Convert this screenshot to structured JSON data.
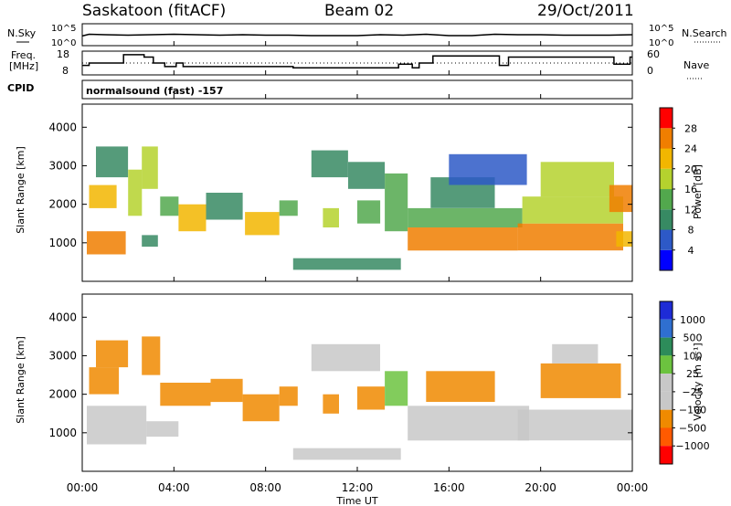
{
  "header": {
    "station": "Saskatoon (fitACF)",
    "beam": "Beam 02",
    "date": "29/Oct/2011"
  },
  "labels": {
    "nsky": "N.Sky",
    "nsearch": "N.Search",
    "freq_line1": "Freq.",
    "freq_line2": "[MHz]",
    "nave": "Nave",
    "cpid": "CPID",
    "cpid_value": "normalsound (fast) -157"
  },
  "colors": {
    "power_scale": [
      "#0000ff",
      "#2d59c7",
      "#378a63",
      "#52a84d",
      "#b5d22e",
      "#f2b600",
      "#f07e00",
      "#ff0000"
    ],
    "velocity_scale": [
      "#1e2bd6",
      "#2f6fd0",
      "#2d8c5a",
      "#6cc33f",
      "#c8c8c8",
      "#c8c8c8",
      "#f08a00",
      "#ff5a00",
      "#ff0000"
    ]
  },
  "chart_data": [
    {
      "type": "line",
      "name": "noise-panel",
      "x_unit": "hours UT",
      "xlim": [
        0,
        24
      ],
      "left_axis": {
        "ticks": [
          "10^5",
          "10^0"
        ]
      },
      "right_axis": {
        "ticks": [
          "10^5",
          "10^0"
        ]
      },
      "series": [
        {
          "name": "N.Sky",
          "x": [
            0,
            0.3,
            1,
            2,
            3,
            4,
            5,
            6,
            7,
            8,
            9,
            10,
            11,
            12,
            13,
            14,
            15,
            16,
            17,
            18,
            19,
            20,
            21,
            22,
            23,
            24
          ],
          "y": [
            2.2,
            2.6,
            2.5,
            2.4,
            2.5,
            2.6,
            2.5,
            2.4,
            2.5,
            2.4,
            2.4,
            2.3,
            2.3,
            2.3,
            2.5,
            2.4,
            2.6,
            2.3,
            2.3,
            2.6,
            2.5,
            2.5,
            2.4,
            2.4,
            2.4,
            2.5
          ]
        },
        {
          "name": "N.Search",
          "x": [
            0,
            24
          ],
          "y": [
            0,
            0
          ]
        }
      ]
    },
    {
      "type": "line",
      "name": "frequency-panel",
      "x_unit": "hours UT",
      "xlim": [
        0,
        24
      ],
      "left_axis": {
        "ticks": [
          "18",
          "8"
        ],
        "ylim": [
          8,
          18
        ]
      },
      "right_axis": {
        "ticks": [
          "60",
          "0"
        ],
        "ylim": [
          0,
          60
        ]
      },
      "series": [
        {
          "name": "Freq.",
          "x": [
            0,
            0.3,
            0.3,
            1.8,
            1.8,
            2.7,
            2.7,
            3.1,
            3.1,
            3.6,
            3.6,
            4.1,
            4.1,
            4.4,
            4.4,
            9.2,
            9.2,
            13.8,
            13.8,
            14.4,
            14.4,
            14.7,
            14.7,
            15.3,
            15.3,
            18.2,
            18.2,
            18.6,
            18.6,
            23.2,
            23.2,
            23.9,
            23.9,
            24
          ],
          "y": [
            12,
            12,
            13,
            13,
            16.5,
            16.5,
            15.5,
            15.5,
            13,
            13,
            11.5,
            11.5,
            13,
            13,
            11.5,
            11.5,
            11,
            11,
            12.5,
            12.5,
            11,
            11,
            13,
            13,
            16,
            16,
            12,
            12,
            15.5,
            15.5,
            12.5,
            12.5,
            15.5,
            15.5
          ]
        },
        {
          "name": "Nave",
          "x": [
            0,
            24
          ],
          "y": [
            30,
            30
          ]
        }
      ]
    },
    {
      "type": "heatmap",
      "name": "power-panel",
      "xlabel": "",
      "ylabel": "Slant Range [km]",
      "xlim": [
        0,
        24
      ],
      "ylim": [
        0,
        4600
      ],
      "y_ticks": [
        1000,
        2000,
        3000,
        4000
      ],
      "colorbar": {
        "label": "Power [dB]",
        "ticks": [
          4,
          8,
          12,
          16,
          20,
          24,
          28
        ],
        "range": [
          0,
          32
        ]
      },
      "regions": [
        {
          "t0": 0.2,
          "t1": 1.9,
          "r0": 700,
          "r1": 1300,
          "v": 24
        },
        {
          "t0": 0.3,
          "t1": 1.5,
          "r0": 1900,
          "r1": 2500,
          "v": 22
        },
        {
          "t0": 0.6,
          "t1": 2.0,
          "r0": 2700,
          "r1": 3500,
          "v": 8
        },
        {
          "t0": 2.0,
          "t1": 2.6,
          "r0": 1700,
          "r1": 2900,
          "v": 16
        },
        {
          "t0": 2.6,
          "t1": 3.3,
          "r0": 2400,
          "r1": 3500,
          "v": 18
        },
        {
          "t0": 2.6,
          "t1": 3.3,
          "r0": 900,
          "r1": 1200,
          "v": 8
        },
        {
          "t0": 3.4,
          "t1": 4.2,
          "r0": 1700,
          "r1": 2200,
          "v": 12
        },
        {
          "t0": 4.2,
          "t1": 5.4,
          "r0": 1300,
          "r1": 2000,
          "v": 20
        },
        {
          "t0": 5.4,
          "t1": 7.0,
          "r0": 1600,
          "r1": 2300,
          "v": 10
        },
        {
          "t0": 7.1,
          "t1": 8.6,
          "r0": 1200,
          "r1": 1800,
          "v": 22
        },
        {
          "t0": 8.6,
          "t1": 9.4,
          "r0": 1700,
          "r1": 2100,
          "v": 14
        },
        {
          "t0": 9.2,
          "t1": 13.9,
          "r0": 300,
          "r1": 600,
          "v": 10
        },
        {
          "t0": 10.0,
          "t1": 11.6,
          "r0": 2700,
          "r1": 3400,
          "v": 8
        },
        {
          "t0": 11.6,
          "t1": 13.2,
          "r0": 2400,
          "r1": 3100,
          "v": 10
        },
        {
          "t0": 10.5,
          "t1": 11.2,
          "r0": 1400,
          "r1": 1900,
          "v": 16
        },
        {
          "t0": 12.0,
          "t1": 13.0,
          "r0": 1500,
          "r1": 2100,
          "v": 12
        },
        {
          "t0": 13.2,
          "t1": 14.2,
          "r0": 1300,
          "r1": 2800,
          "v": 12
        },
        {
          "t0": 14.2,
          "t1": 19.0,
          "r0": 800,
          "r1": 1400,
          "v": 24
        },
        {
          "t0": 14.2,
          "t1": 19.2,
          "r0": 1400,
          "r1": 1900,
          "v": 14
        },
        {
          "t0": 15.2,
          "t1": 18.0,
          "r0": 1900,
          "r1": 2700,
          "v": 10
        },
        {
          "t0": 16.0,
          "t1": 19.4,
          "r0": 2500,
          "r1": 3300,
          "v": 6
        },
        {
          "t0": 19.0,
          "t1": 23.6,
          "r0": 800,
          "r1": 1500,
          "v": 24
        },
        {
          "t0": 19.2,
          "t1": 23.6,
          "r0": 1500,
          "r1": 2200,
          "v": 16
        },
        {
          "t0": 20.0,
          "t1": 23.2,
          "r0": 2200,
          "r1": 3100,
          "v": 18
        },
        {
          "t0": 23.0,
          "t1": 24.0,
          "r0": 1800,
          "r1": 2500,
          "v": 26
        },
        {
          "t0": 23.3,
          "t1": 24.0,
          "r0": 900,
          "r1": 1300,
          "v": 22
        }
      ]
    },
    {
      "type": "heatmap",
      "name": "velocity-panel",
      "xlabel": "Time UT",
      "ylabel": "Slant Range [km]",
      "xlim": [
        0,
        24
      ],
      "ylim": [
        0,
        4600
      ],
      "y_ticks": [
        1000,
        2000,
        3000,
        4000
      ],
      "x_ticks": [
        "00:00",
        "04:00",
        "08:00",
        "12:00",
        "16:00",
        "20:00",
        "00:00"
      ],
      "colorbar": {
        "label": "Velocity [m s⁻¹]",
        "ticks": [
          "1000",
          "500",
          "100",
          "25",
          "−25",
          "−100",
          "−500",
          "−1000"
        ]
      },
      "regions": [
        {
          "t0": 0.2,
          "t1": 2.8,
          "r0": 700,
          "r1": 1700,
          "v": 0
        },
        {
          "t0": 2.8,
          "t1": 4.2,
          "r0": 900,
          "r1": 1300,
          "v": 0
        },
        {
          "t0": 0.3,
          "t1": 1.6,
          "r0": 2000,
          "r1": 2700,
          "v": -150
        },
        {
          "t0": 0.6,
          "t1": 2.0,
          "r0": 2700,
          "r1": 3400,
          "v": -150
        },
        {
          "t0": 2.6,
          "t1": 3.4,
          "r0": 2500,
          "r1": 3500,
          "v": -400
        },
        {
          "t0": 3.4,
          "t1": 5.6,
          "r0": 1700,
          "r1": 2300,
          "v": -150
        },
        {
          "t0": 5.6,
          "t1": 7.0,
          "r0": 1800,
          "r1": 2400,
          "v": -150
        },
        {
          "t0": 7.0,
          "t1": 8.6,
          "r0": 1300,
          "r1": 2000,
          "v": -300
        },
        {
          "t0": 8.6,
          "t1": 9.4,
          "r0": 1700,
          "r1": 2200,
          "v": -150
        },
        {
          "t0": 9.2,
          "t1": 13.9,
          "r0": 300,
          "r1": 600,
          "v": 0
        },
        {
          "t0": 10.0,
          "t1": 13.0,
          "r0": 2600,
          "r1": 3300,
          "v": 0
        },
        {
          "t0": 10.5,
          "t1": 11.2,
          "r0": 1500,
          "r1": 2000,
          "v": -150
        },
        {
          "t0": 12.0,
          "t1": 13.2,
          "r0": 1600,
          "r1": 2200,
          "v": -300
        },
        {
          "t0": 13.2,
          "t1": 14.2,
          "r0": 1700,
          "r1": 2600,
          "v": 60
        },
        {
          "t0": 14.2,
          "t1": 19.5,
          "r0": 800,
          "r1": 1700,
          "v": 0
        },
        {
          "t0": 15.0,
          "t1": 18.0,
          "r0": 1800,
          "r1": 2600,
          "v": -150
        },
        {
          "t0": 19.0,
          "t1": 24.0,
          "r0": 800,
          "r1": 1600,
          "v": 0
        },
        {
          "t0": 20.0,
          "t1": 23.5,
          "r0": 1900,
          "r1": 2800,
          "v": -200
        },
        {
          "t0": 20.5,
          "t1": 22.5,
          "r0": 2800,
          "r1": 3300,
          "v": 0
        }
      ]
    }
  ]
}
